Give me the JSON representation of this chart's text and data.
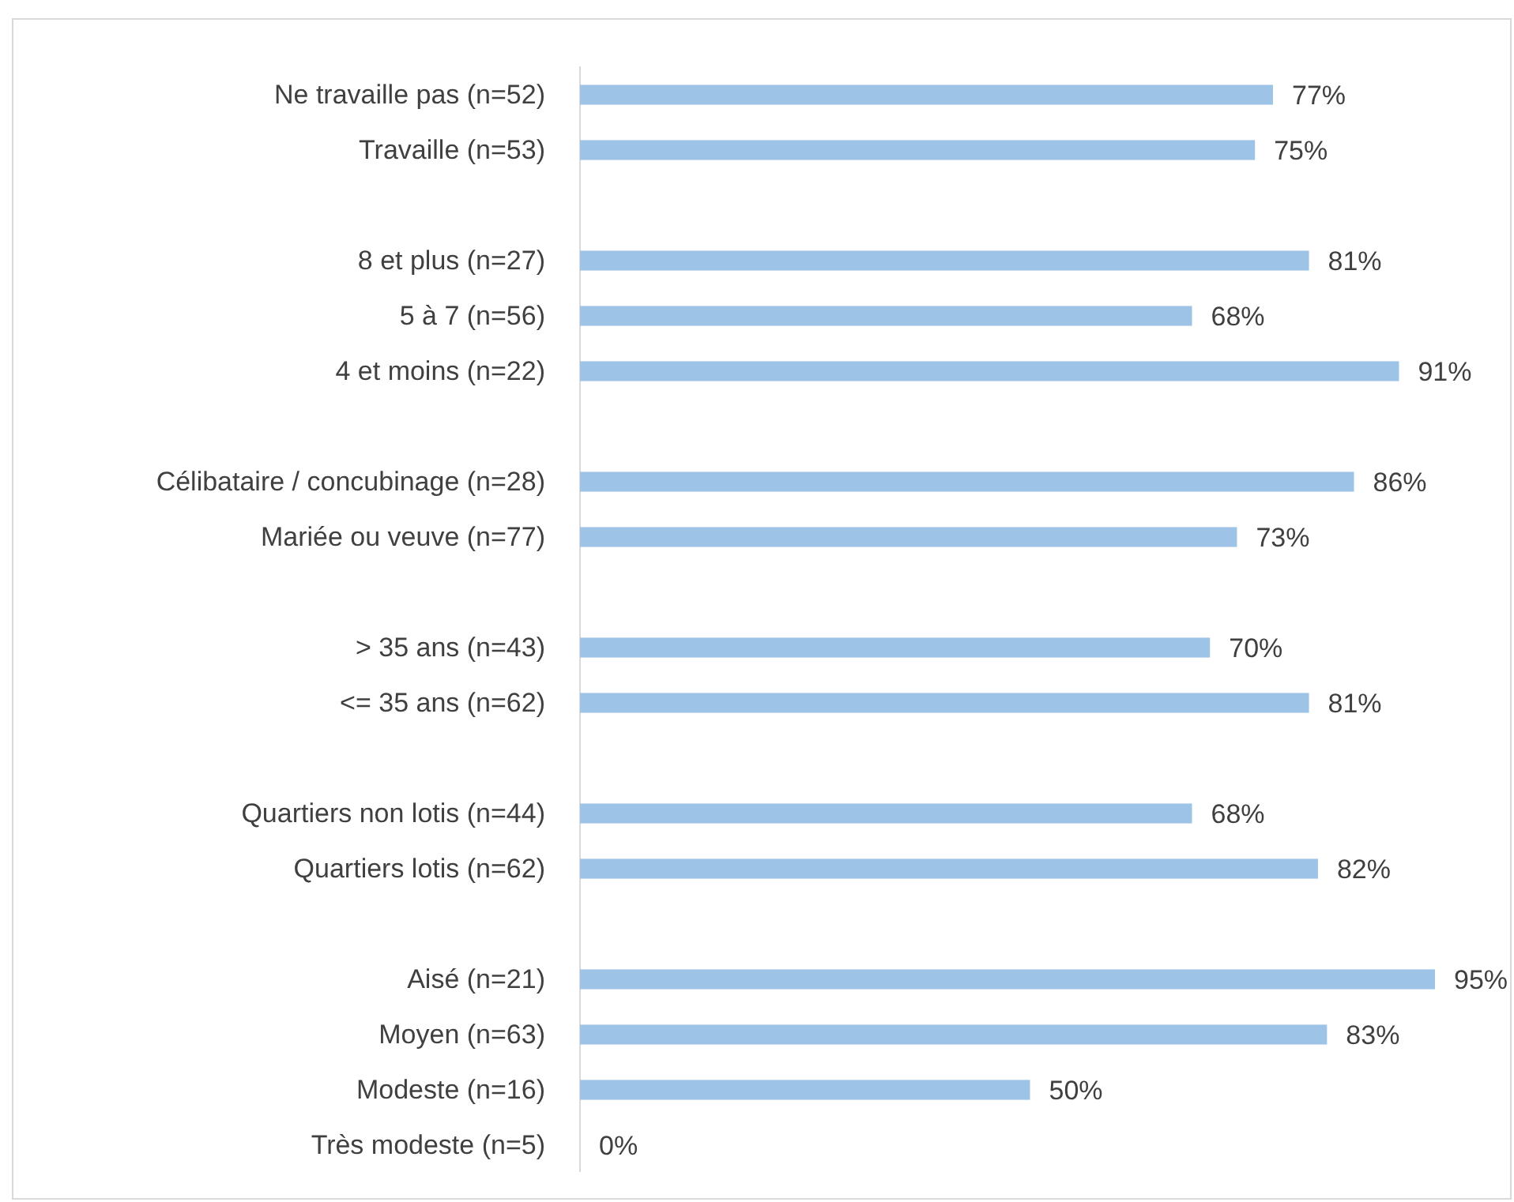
{
  "chart_data": {
    "type": "bar",
    "orientation": "horizontal",
    "tick_labels": "y",
    "categories": [
      "Ne travaille pas (n=52)",
      "Travaille (n=53)",
      null,
      "8 et plus (n=27)",
      "5 à 7 (n=56)",
      "4 et moins (n=22)",
      null,
      "Célibataire / concubinage (n=28)",
      "Mariée ou veuve (n=77)",
      null,
      "> 35 ans (n=43)",
      "<= 35 ans (n=62)",
      null,
      "Quartiers non lotis (n=44)",
      "Quartiers lotis (n=62)",
      null,
      "Aisé (n=21)",
      "Moyen (n=63)",
      "Modeste (n=16)",
      "Très modeste (n=5)"
    ],
    "values": [
      77,
      75,
      null,
      81,
      68,
      91,
      null,
      86,
      73,
      null,
      70,
      81,
      null,
      68,
      82,
      null,
      95,
      83,
      50,
      0
    ],
    "value_labels": [
      "77%",
      "75%",
      null,
      "81%",
      "68%",
      "91%",
      null,
      "86%",
      "73%",
      null,
      "70%",
      "81%",
      null,
      "68%",
      "82%",
      null,
      "95%",
      "83%",
      "50%",
      "0%"
    ],
    "color": "#9dc3e6"
  }
}
